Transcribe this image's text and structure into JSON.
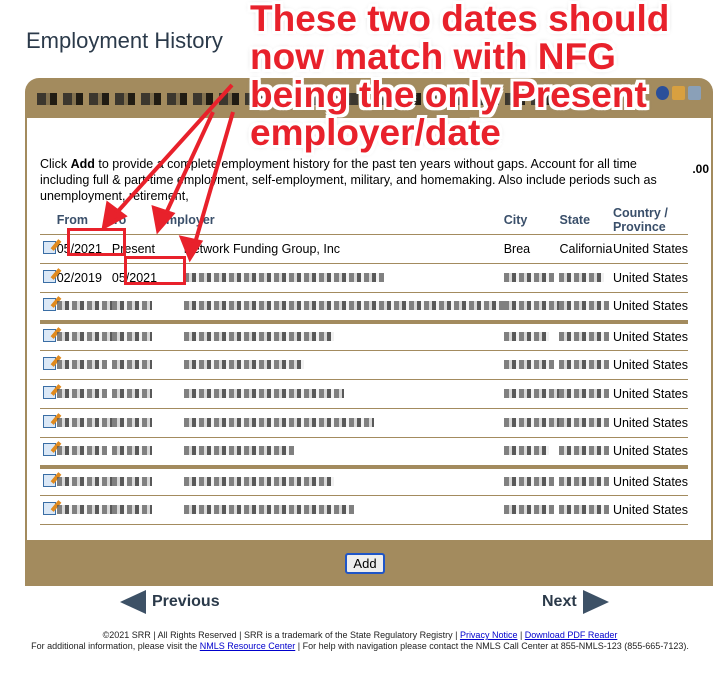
{
  "page_title": "Employment History",
  "header_partial": ".00",
  "intro": {
    "pre": "Click ",
    "bold": "Add",
    "post": " to provide a complete employment history for the past ten years without gaps. Account for all time including full & part-time employment, self-employment, military, and homemaking. Also include periods such as unemployment, retirement,"
  },
  "columns": [
    "From",
    "To",
    "Employer",
    "City",
    "State",
    "Country / Province"
  ],
  "rows": [
    {
      "from": "05/2021",
      "to": "Present",
      "employer": "Network Funding Group, Inc",
      "city": "Brea",
      "state": "California",
      "country": "United States"
    },
    {
      "from": "02/2019",
      "to": "05/2021",
      "employer": "",
      "city": "",
      "state": "",
      "country": "United States"
    },
    {
      "country": "United States"
    },
    {
      "country": "United States"
    },
    {
      "country": "United States"
    },
    {
      "country": "United States"
    },
    {
      "country": "United States"
    },
    {
      "country": "United States"
    },
    {
      "country": "United States"
    },
    {
      "country": "United States"
    }
  ],
  "add_label": "Add",
  "previous_label": "Previous",
  "next_label": "Next",
  "footer": {
    "line1": "©2021 SRR | All Rights Reserved | SRR is a trademark of the State Regulatory Registry | ",
    "privacy": "Privacy Notice",
    "sep": " | ",
    "pdf": "Download PDF Reader",
    "line2a": "For additional information, please visit the ",
    "resource": "NMLS Resource Center",
    "line2b": " | For help with navigation please contact the NMLS Call Center at 855-NMLS-123 (855-665-7123)."
  },
  "annotation": {
    "lines": [
      "These two dates should",
      "now match with NFG",
      "being the only Present",
      "employer/date"
    ],
    "color": "#e8212b"
  },
  "colors": {
    "panel": "#a38b5e",
    "header_text": "#3a4f6a",
    "nav": "#3d5166"
  }
}
